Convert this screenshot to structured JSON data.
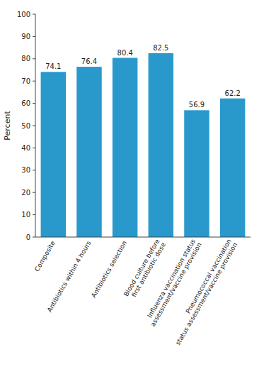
{
  "chart_data": {
    "type": "bar",
    "ylabel": "Percent",
    "categories": [
      "Composite",
      "Antibiotics within 4 hours",
      "Antibiotics selection",
      "Blood culture before\nfirst antibiotic dose",
      "Influenza vaccination status\nassessment/vaccine provision",
      "Pneumococcal vaccination\nstatus assessment/vaccine provision"
    ],
    "values": [
      74.1,
      76.4,
      80.4,
      82.5,
      56.9,
      62.2
    ],
    "color": "#2999cc",
    "ylim": [
      0,
      100
    ],
    "yticks": [
      0,
      10,
      20,
      30,
      40,
      50,
      60,
      70,
      80,
      90,
      100
    ],
    "grid": false,
    "data_labels": true
  }
}
